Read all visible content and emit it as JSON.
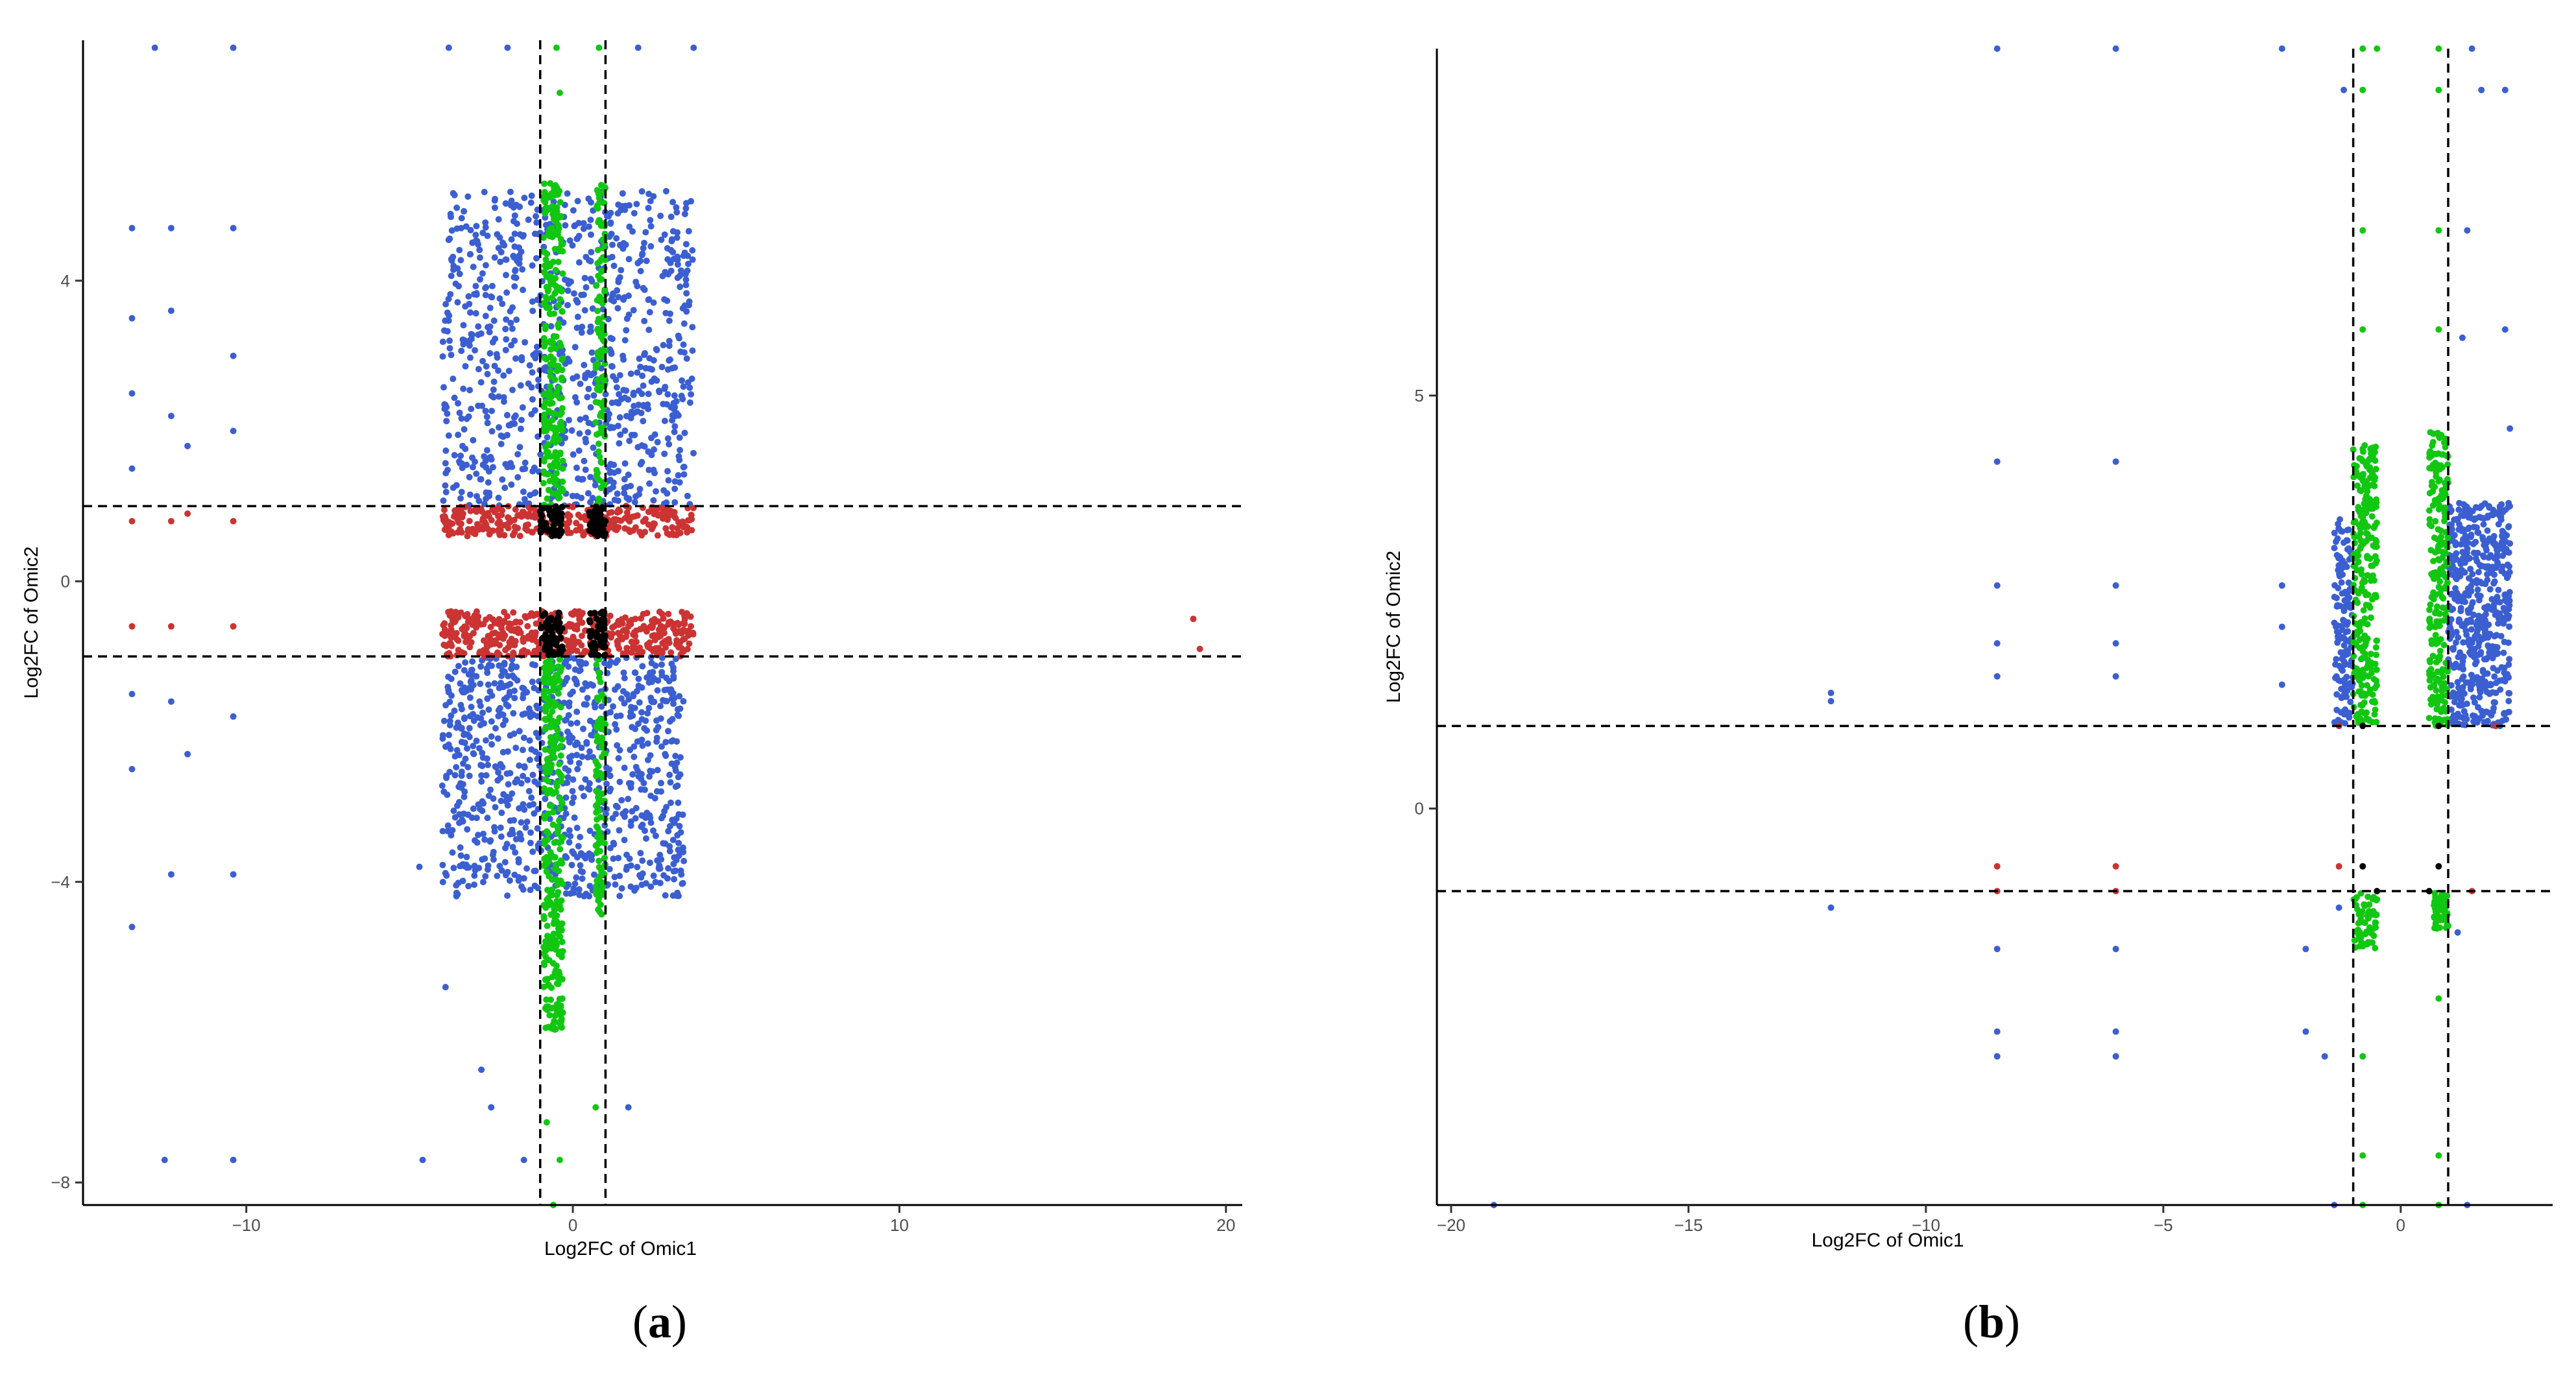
{
  "colors": {
    "both_significant": "#3b5fd1",
    "omic1_only": "#cc3333",
    "omic2_only": "#11c711",
    "not_significant": "#000000"
  },
  "chart_data": [
    {
      "panel": "a",
      "type": "scatter",
      "xlabel": "Log2FC of Omic1",
      "ylabel": "Log2FC of Omic2",
      "xlim": [
        -15,
        20.5
      ],
      "ylim": [
        -8.3,
        7.2
      ],
      "xticks": [
        -10,
        0,
        10,
        20
      ],
      "yticks": [
        -8,
        -4,
        0,
        4
      ],
      "x_thresholds": [
        -1,
        1
      ],
      "y_thresholds": [
        -1,
        1
      ],
      "legend": "none",
      "description_points": "dense gene points; blue = both omics |log2FC|>1, red = Omic1 only, green = Omic2 only, black = neither",
      "regions": [
        {
          "group": "both_significant",
          "x": [
            -4,
            3.7
          ],
          "y": [
            1.0,
            5.2
          ]
        },
        {
          "group": "both_significant",
          "x": [
            -4,
            3.4
          ],
          "y": [
            -4.2,
            -1.0
          ]
        },
        {
          "group": "omic1_only",
          "x": [
            -4,
            3.7
          ],
          "y": [
            0.6,
            1.0
          ]
        },
        {
          "group": "omic1_only",
          "x": [
            -4,
            3.7
          ],
          "y": [
            -1.0,
            -0.4
          ]
        },
        {
          "group": "omic2_only",
          "x": [
            -0.9,
            -0.3
          ],
          "y": [
            1.0,
            5.3
          ]
        },
        {
          "group": "omic2_only",
          "x": [
            0.7,
            1.0
          ],
          "y": [
            1.0,
            5.3
          ]
        },
        {
          "group": "omic2_only",
          "x": [
            -0.9,
            -0.3
          ],
          "y": [
            -6,
            -1.0
          ]
        },
        {
          "group": "omic2_only",
          "x": [
            0.7,
            1.0
          ],
          "y": [
            -4.5,
            -1.0
          ]
        },
        {
          "group": "not_significant",
          "x": [
            -1,
            -0.3
          ],
          "y": [
            0.6,
            1.0
          ]
        },
        {
          "group": "not_significant",
          "x": [
            0.5,
            1.0
          ],
          "y": [
            0.6,
            1.0
          ]
        },
        {
          "group": "not_significant",
          "x": [
            -1,
            -0.3
          ],
          "y": [
            -1.0,
            -0.4
          ]
        },
        {
          "group": "not_significant",
          "x": [
            0.5,
            1.0
          ],
          "y": [
            -1.0,
            -0.4
          ]
        }
      ],
      "points": [
        {
          "group": "both_significant",
          "x": -13.5,
          "y": 4.7
        },
        {
          "group": "both_significant",
          "x": -13.5,
          "y": 3.5
        },
        {
          "group": "both_significant",
          "x": -13.5,
          "y": 2.5
        },
        {
          "group": "both_significant",
          "x": -13.5,
          "y": 1.5
        },
        {
          "group": "both_significant",
          "x": -13.5,
          "y": -1.5
        },
        {
          "group": "both_significant",
          "x": -13.5,
          "y": -2.5
        },
        {
          "group": "both_significant",
          "x": -13.5,
          "y": -4.6
        },
        {
          "group": "both_significant",
          "x": -12.3,
          "y": 4.7
        },
        {
          "group": "both_significant",
          "x": -12.3,
          "y": 3.6
        },
        {
          "group": "both_significant",
          "x": -12.3,
          "y": 2.2
        },
        {
          "group": "both_significant",
          "x": -12.3,
          "y": -1.6
        },
        {
          "group": "both_significant",
          "x": -12.3,
          "y": -3.9
        },
        {
          "group": "both_significant",
          "x": -10.4,
          "y": 4.7
        },
        {
          "group": "both_significant",
          "x": -10.4,
          "y": 3.0
        },
        {
          "group": "both_significant",
          "x": -10.4,
          "y": 2.0
        },
        {
          "group": "both_significant",
          "x": -10.4,
          "y": -1.8
        },
        {
          "group": "both_significant",
          "x": -10.4,
          "y": -3.9
        },
        {
          "group": "both_significant",
          "x": -11.8,
          "y": 1.8
        },
        {
          "group": "both_significant",
          "x": -11.8,
          "y": -2.3
        },
        {
          "group": "both_significant",
          "x": -12.8,
          "y": 7.1
        },
        {
          "group": "both_significant",
          "x": -10.4,
          "y": 7.1
        },
        {
          "group": "both_significant",
          "x": -3.8,
          "y": 7.1
        },
        {
          "group": "both_significant",
          "x": -2.0,
          "y": 7.1
        },
        {
          "group": "both_significant",
          "x": 2.0,
          "y": 7.1
        },
        {
          "group": "both_significant",
          "x": 3.7,
          "y": 7.1
        },
        {
          "group": "both_significant",
          "x": -12.5,
          "y": -7.7
        },
        {
          "group": "both_significant",
          "x": -10.4,
          "y": -7.7
        },
        {
          "group": "both_significant",
          "x": -4.6,
          "y": -7.7
        },
        {
          "group": "both_significant",
          "x": -1.5,
          "y": -7.7
        },
        {
          "group": "both_significant",
          "x": -4.7,
          "y": -3.8
        },
        {
          "group": "both_significant",
          "x": -3.9,
          "y": -5.4
        },
        {
          "group": "both_significant",
          "x": -2.8,
          "y": -6.5
        },
        {
          "group": "both_significant",
          "x": -2.5,
          "y": -7.0
        },
        {
          "group": "both_significant",
          "x": 1.7,
          "y": -7.0
        },
        {
          "group": "omic1_only",
          "x": -13.5,
          "y": 0.8
        },
        {
          "group": "omic1_only",
          "x": -13.5,
          "y": -0.6
        },
        {
          "group": "omic1_only",
          "x": -12.3,
          "y": 0.8
        },
        {
          "group": "omic1_only",
          "x": -11.8,
          "y": 0.9
        },
        {
          "group": "omic1_only",
          "x": -10.4,
          "y": 0.8
        },
        {
          "group": "omic1_only",
          "x": -10.4,
          "y": -0.6
        },
        {
          "group": "omic1_only",
          "x": -12.3,
          "y": -0.6
        },
        {
          "group": "omic1_only",
          "x": 19.0,
          "y": -0.5
        },
        {
          "group": "omic1_only",
          "x": 19.2,
          "y": -0.9
        },
        {
          "group": "omic2_only",
          "x": -0.5,
          "y": 7.1
        },
        {
          "group": "omic2_only",
          "x": 0.8,
          "y": 7.1
        },
        {
          "group": "omic2_only",
          "x": -0.4,
          "y": 6.5
        },
        {
          "group": "omic2_only",
          "x": -0.4,
          "y": -7.7
        },
        {
          "group": "omic2_only",
          "x": -0.8,
          "y": -7.2
        },
        {
          "group": "omic2_only",
          "x": 0.7,
          "y": -7.0
        },
        {
          "group": "omic2_only",
          "x": -0.6,
          "y": -8.3
        }
      ]
    },
    {
      "panel": "b",
      "type": "scatter",
      "xlabel": "Log2FC of Omic1",
      "ylabel": "Log2FC of Omic2",
      "xlim": [
        -20.3,
        3.2
      ],
      "ylim": [
        -4.8,
        9.2
      ],
      "xticks": [
        -20,
        -15,
        -10,
        -5,
        0
      ],
      "yticks": [
        0,
        5
      ],
      "x_thresholds": [
        -1,
        1
      ],
      "y_thresholds": [
        -1,
        1
      ],
      "legend": "none",
      "regions": [
        {
          "group": "both_significant",
          "x": [
            -1.4,
            -1.0
          ],
          "y": [
            1.0,
            3.5
          ]
        },
        {
          "group": "both_significant",
          "x": [
            1.0,
            2.3
          ],
          "y": [
            1.0,
            3.7
          ]
        },
        {
          "group": "omic2_only",
          "x": [
            -1.0,
            -0.5
          ],
          "y": [
            1.0,
            4.4
          ]
        },
        {
          "group": "omic2_only",
          "x": [
            0.6,
            1.0
          ],
          "y": [
            1.0,
            4.6
          ]
        },
        {
          "group": "omic2_only",
          "x": [
            -1.0,
            -0.5
          ],
          "y": [
            -1.7,
            -1.0
          ]
        },
        {
          "group": "omic2_only",
          "x": [
            0.7,
            1.0
          ],
          "y": [
            -1.5,
            -1.0
          ]
        }
      ],
      "points": [
        {
          "group": "both_significant",
          "x": -19.1,
          "y": -4.8
        },
        {
          "group": "both_significant",
          "x": -12.0,
          "y": 1.4
        },
        {
          "group": "both_significant",
          "x": -12.0,
          "y": 1.3
        },
        {
          "group": "both_significant",
          "x": -12.0,
          "y": -1.2
        },
        {
          "group": "both_significant",
          "x": -8.5,
          "y": 9.2
        },
        {
          "group": "both_significant",
          "x": -8.5,
          "y": 4.2
        },
        {
          "group": "both_significant",
          "x": -8.5,
          "y": 2.7
        },
        {
          "group": "both_significant",
          "x": -8.5,
          "y": 2.0
        },
        {
          "group": "both_significant",
          "x": -8.5,
          "y": 1.6
        },
        {
          "group": "both_significant",
          "x": -8.5,
          "y": -1.7
        },
        {
          "group": "both_significant",
          "x": -8.5,
          "y": -2.7
        },
        {
          "group": "both_significant",
          "x": -8.5,
          "y": -3.0
        },
        {
          "group": "both_significant",
          "x": -6.0,
          "y": 9.2
        },
        {
          "group": "both_significant",
          "x": -6.0,
          "y": 4.2
        },
        {
          "group": "both_significant",
          "x": -6.0,
          "y": 2.7
        },
        {
          "group": "both_significant",
          "x": -6.0,
          "y": 2.0
        },
        {
          "group": "both_significant",
          "x": -6.0,
          "y": 1.6
        },
        {
          "group": "both_significant",
          "x": -6.0,
          "y": -1.7
        },
        {
          "group": "both_significant",
          "x": -6.0,
          "y": -2.7
        },
        {
          "group": "both_significant",
          "x": -6.0,
          "y": -3.0
        },
        {
          "group": "both_significant",
          "x": -2.5,
          "y": 9.2
        },
        {
          "group": "both_significant",
          "x": -2.5,
          "y": 2.7
        },
        {
          "group": "both_significant",
          "x": -2.5,
          "y": 2.2
        },
        {
          "group": "both_significant",
          "x": -2.5,
          "y": 1.5
        },
        {
          "group": "both_significant",
          "x": -2.0,
          "y": -1.7
        },
        {
          "group": "both_significant",
          "x": -2.0,
          "y": -2.7
        },
        {
          "group": "both_significant",
          "x": -1.6,
          "y": -3.0
        },
        {
          "group": "both_significant",
          "x": -1.2,
          "y": 8.7
        },
        {
          "group": "both_significant",
          "x": 1.5,
          "y": 9.2
        },
        {
          "group": "both_significant",
          "x": 1.7,
          "y": 8.7
        },
        {
          "group": "both_significant",
          "x": 2.2,
          "y": 8.7
        },
        {
          "group": "both_significant",
          "x": 1.4,
          "y": 7.0
        },
        {
          "group": "both_significant",
          "x": 1.3,
          "y": 5.7
        },
        {
          "group": "both_significant",
          "x": 2.2,
          "y": 5.8
        },
        {
          "group": "both_significant",
          "x": 2.3,
          "y": 4.6
        },
        {
          "group": "both_significant",
          "x": 1.2,
          "y": -1.5
        },
        {
          "group": "both_significant",
          "x": -1.3,
          "y": -1.2
        },
        {
          "group": "both_significant",
          "x": -1.4,
          "y": -4.8
        },
        {
          "group": "both_significant",
          "x": 1.4,
          "y": -4.8
        },
        {
          "group": "omic1_only",
          "x": -8.5,
          "y": -0.7
        },
        {
          "group": "omic1_only",
          "x": -6.0,
          "y": -0.7
        },
        {
          "group": "omic1_only",
          "x": -8.5,
          "y": -1.0
        },
        {
          "group": "omic1_only",
          "x": -6.0,
          "y": -1.0
        },
        {
          "group": "omic1_only",
          "x": -1.3,
          "y": -0.7
        },
        {
          "group": "omic1_only",
          "x": 1.5,
          "y": -1.0
        },
        {
          "group": "omic1_only",
          "x": 2.0,
          "y": 1.0
        },
        {
          "group": "omic1_only",
          "x": -1.3,
          "y": 1.0
        },
        {
          "group": "omic2_only",
          "x": -0.8,
          "y": 9.2
        },
        {
          "group": "omic2_only",
          "x": -0.5,
          "y": 9.2
        },
        {
          "group": "omic2_only",
          "x": 0.8,
          "y": 9.2
        },
        {
          "group": "omic2_only",
          "x": -0.8,
          "y": 8.7
        },
        {
          "group": "omic2_only",
          "x": 0.8,
          "y": 8.7
        },
        {
          "group": "omic2_only",
          "x": -0.8,
          "y": 7.0
        },
        {
          "group": "omic2_only",
          "x": 0.8,
          "y": 7.0
        },
        {
          "group": "omic2_only",
          "x": -0.8,
          "y": 5.8
        },
        {
          "group": "omic2_only",
          "x": 0.8,
          "y": 5.8
        },
        {
          "group": "omic2_only",
          "x": -0.8,
          "y": -3.0
        },
        {
          "group": "omic2_only",
          "x": 0.8,
          "y": -2.3
        },
        {
          "group": "omic2_only",
          "x": -0.8,
          "y": -4.2
        },
        {
          "group": "omic2_only",
          "x": 0.8,
          "y": -4.2
        },
        {
          "group": "omic2_only",
          "x": -0.8,
          "y": -4.8
        },
        {
          "group": "omic2_only",
          "x": 0.8,
          "y": -4.8
        },
        {
          "group": "not_significant",
          "x": -0.8,
          "y": 1.0
        },
        {
          "group": "not_significant",
          "x": 0.8,
          "y": 1.0
        },
        {
          "group": "not_significant",
          "x": -0.8,
          "y": -0.7
        },
        {
          "group": "not_significant",
          "x": 0.8,
          "y": -0.7
        },
        {
          "group": "not_significant",
          "x": -0.5,
          "y": -1.0
        },
        {
          "group": "not_significant",
          "x": 0.6,
          "y": -1.0
        }
      ]
    }
  ],
  "panel_labels": [
    {
      "open": "(",
      "letter": "a",
      "close": ")"
    },
    {
      "open": "(",
      "letter": "b",
      "close": ")"
    }
  ]
}
